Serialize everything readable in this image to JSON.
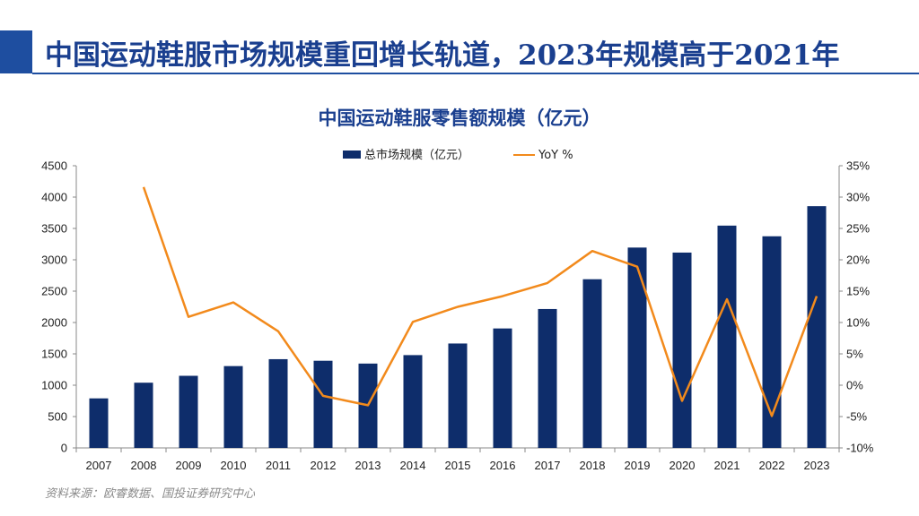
{
  "header": {
    "title": "中国运动鞋服市场规模重回增长轨道，2023年规模高于2021年"
  },
  "source_note": "资料来源：欧睿数据、国投证券研究中心",
  "colors": {
    "accent": "#1e4ea0",
    "bar": "#0e2d6b",
    "line": "#f28a1c",
    "title_text": "#1a3f8f"
  },
  "chart_data": {
    "type": "bar",
    "title": "中国运动鞋服零售额规模（亿元）",
    "categories": [
      "2007",
      "2008",
      "2009",
      "2010",
      "2011",
      "2012",
      "2013",
      "2014",
      "2015",
      "2016",
      "2017",
      "2018",
      "2019",
      "2020",
      "2021",
      "2022",
      "2023"
    ],
    "series": [
      {
        "name": "总市场规模（亿元）",
        "type": "bar",
        "axis": "left",
        "values": [
          790,
          1040,
          1150,
          1305,
          1415,
          1390,
          1345,
          1480,
          1665,
          1905,
          2215,
          2690,
          3195,
          3115,
          3545,
          3375,
          3855
        ]
      },
      {
        "name": "YoY %",
        "type": "line",
        "axis": "right",
        "values": [
          null,
          31.6,
          10.9,
          13.2,
          8.6,
          -1.7,
          -3.2,
          10.1,
          12.5,
          14.2,
          16.3,
          21.4,
          18.9,
          -2.5,
          13.7,
          -4.9,
          14.2
        ]
      }
    ],
    "ylim": [
      0,
      4500
    ],
    "y_ticks": [
      "0",
      "500",
      "1000",
      "1500",
      "2000",
      "2500",
      "3000",
      "3500",
      "4000",
      "4500"
    ],
    "y2lim": [
      -10,
      35
    ],
    "y2_ticks": [
      "-10%",
      "-5%",
      "0%",
      "5%",
      "10%",
      "15%",
      "20%",
      "25%",
      "30%",
      "35%"
    ],
    "grid": false,
    "legend_position": "top-center"
  }
}
